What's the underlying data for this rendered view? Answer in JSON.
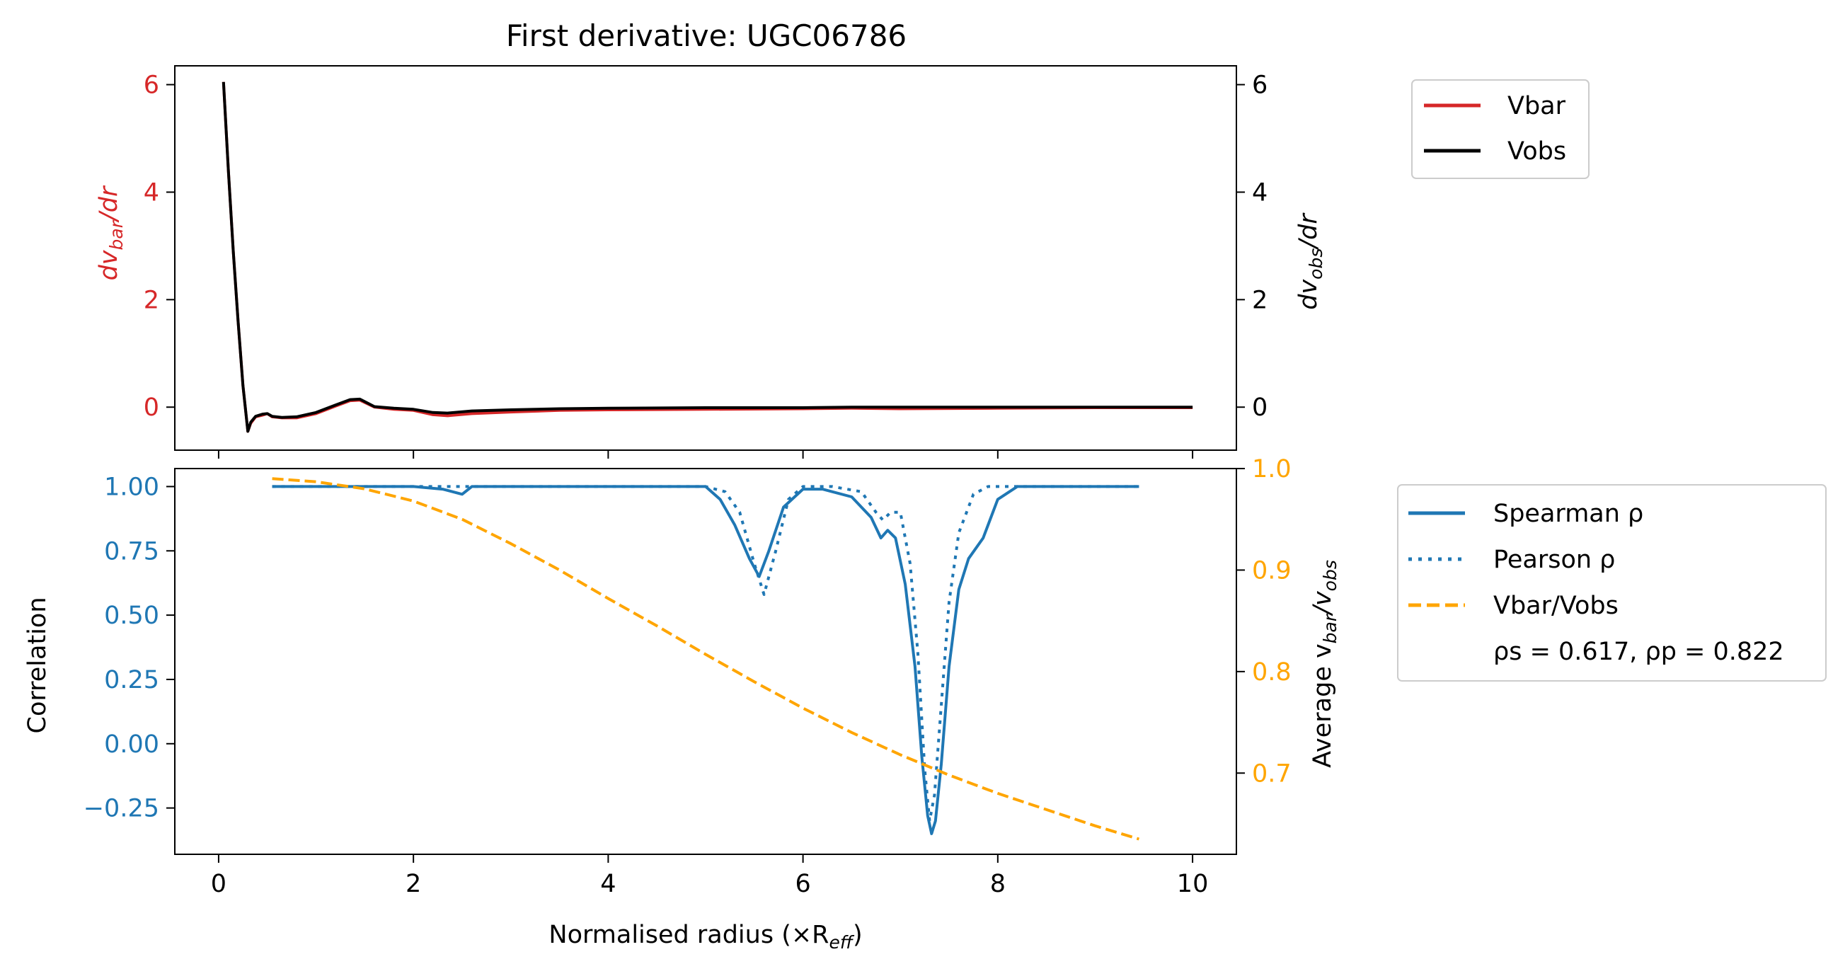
{
  "title": "First derivative: UGC06786",
  "colors": {
    "vbar": "#d62728",
    "vobs": "#000000",
    "correlation": "#1f77b4",
    "ratio": "#ffa500"
  },
  "top_panel": {
    "ylabel_left_main": "dv",
    "ylabel_left_sub": "bar",
    "ylabel_left_tail": "/dr",
    "ylabel_right_main": "dv",
    "ylabel_right_sub": "obs",
    "ylabel_right_tail": "/dr",
    "legend": {
      "vbar": "Vbar",
      "vobs": "Vobs"
    }
  },
  "bottom_panel": {
    "xlabel_main": "Normalised radius (×R",
    "xlabel_sub": "eff",
    "xlabel_tail": ")",
    "ylabel_left": "Correlation",
    "ylabel_right_main": "Average v",
    "ylabel_right_sub1": "bar",
    "ylabel_right_mid": "/v",
    "ylabel_right_sub2": "obs",
    "legend": {
      "spearman": "Spearman ρ",
      "pearson": "Pearson ρ",
      "ratio": "Vbar/Vobs",
      "stats": "ρs = 0.617, ρp = 0.822"
    }
  },
  "chart_data": [
    {
      "type": "line",
      "title": "First derivative: UGC06786",
      "xlabel": "",
      "ylabel_left": "dv_bar/dr",
      "ylabel_right": "dv_obs/dr",
      "xlim": [
        -0.45,
        10.45
      ],
      "ylim_left": [
        -0.8,
        6.35
      ],
      "ylim_right": [
        -0.8,
        6.35
      ],
      "xticks": [
        0,
        2,
        4,
        6,
        8,
        10
      ],
      "yticks_left": [
        0,
        2,
        4,
        6
      ],
      "yticks_right": [
        0,
        2,
        4,
        6
      ],
      "legend_position": "outside upper right",
      "series": [
        {
          "name": "Vbar",
          "color": "#d62728",
          "x": [
            0.05,
            0.1,
            0.15,
            0.2,
            0.25,
            0.3,
            0.33,
            0.38,
            0.45,
            0.5,
            0.55,
            0.65,
            0.8,
            1.0,
            1.2,
            1.35,
            1.45,
            1.6,
            1.8,
            2.0,
            2.2,
            2.35,
            2.6,
            3.0,
            3.5,
            4.0,
            5.0,
            6.0,
            6.5,
            7.0,
            8.0,
            9.0,
            10.0
          ],
          "y": [
            6.05,
            4.4,
            2.9,
            1.6,
            0.4,
            -0.45,
            -0.3,
            -0.18,
            -0.15,
            -0.12,
            -0.18,
            -0.2,
            -0.2,
            -0.12,
            0.02,
            0.12,
            0.13,
            0.0,
            -0.04,
            -0.06,
            -0.14,
            -0.16,
            -0.12,
            -0.09,
            -0.06,
            -0.05,
            -0.04,
            -0.03,
            -0.02,
            -0.03,
            -0.02,
            -0.01,
            -0.01
          ]
        },
        {
          "name": "Vobs",
          "color": "#000000",
          "x": [
            0.05,
            0.1,
            0.15,
            0.2,
            0.25,
            0.3,
            0.33,
            0.38,
            0.45,
            0.5,
            0.55,
            0.65,
            0.8,
            1.0,
            1.2,
            1.35,
            1.45,
            1.6,
            1.8,
            2.0,
            2.2,
            2.35,
            2.6,
            3.0,
            3.5,
            4.0,
            5.0,
            6.0,
            6.5,
            7.0,
            8.0,
            9.0,
            10.0
          ],
          "y": [
            6.05,
            4.4,
            2.9,
            1.6,
            0.4,
            -0.45,
            -0.28,
            -0.17,
            -0.13,
            -0.12,
            -0.17,
            -0.19,
            -0.18,
            -0.1,
            0.04,
            0.14,
            0.15,
            0.01,
            -0.02,
            -0.04,
            -0.1,
            -0.11,
            -0.07,
            -0.05,
            -0.03,
            -0.02,
            -0.01,
            -0.01,
            0.0,
            0.0,
            0.0,
            0.0,
            0.0
          ]
        }
      ]
    },
    {
      "type": "line",
      "title": "",
      "xlabel": "Normalised radius (×R_eff)",
      "ylabel_left": "Correlation",
      "ylabel_right": "Average v_bar/v_obs",
      "xlim": [
        -0.45,
        10.45
      ],
      "ylim_left": [
        -0.43,
        1.07
      ],
      "ylim_right": [
        0.62,
        1.0
      ],
      "xticks": [
        0,
        2,
        4,
        6,
        8,
        10
      ],
      "yticks_left": [
        1.0,
        0.75,
        0.5,
        0.25,
        0.0,
        -0.25
      ],
      "yticks_left_labels": [
        "1.00",
        "0.75",
        "0.50",
        "0.25",
        "0.00",
        "−0.25"
      ],
      "yticks_right": [
        1.0,
        0.9,
        0.8,
        0.7
      ],
      "yticks_right_labels": [
        "1.0",
        "0.9",
        "0.8",
        "0.7"
      ],
      "legend_position": "outside upper right",
      "series": [
        {
          "name": "Spearman ρ",
          "axis": "left",
          "color": "#1f77b4",
          "style": "solid",
          "x": [
            0.55,
            1.0,
            2.0,
            2.3,
            2.5,
            2.6,
            3.0,
            4.0,
            5.0,
            5.15,
            5.3,
            5.45,
            5.55,
            5.65,
            5.8,
            6.0,
            6.2,
            6.5,
            6.7,
            6.8,
            6.87,
            6.95,
            7.05,
            7.15,
            7.22,
            7.28,
            7.32,
            7.36,
            7.42,
            7.5,
            7.6,
            7.7,
            7.85,
            8.0,
            8.2,
            9.0,
            9.45
          ],
          "y": [
            1.0,
            1.0,
            1.0,
            0.99,
            0.97,
            1.0,
            1.0,
            1.0,
            1.0,
            0.95,
            0.85,
            0.72,
            0.65,
            0.75,
            0.92,
            0.99,
            0.99,
            0.96,
            0.88,
            0.8,
            0.83,
            0.8,
            0.62,
            0.3,
            -0.05,
            -0.28,
            -0.35,
            -0.3,
            -0.08,
            0.3,
            0.6,
            0.72,
            0.8,
            0.95,
            1.0,
            1.0,
            1.0
          ]
        },
        {
          "name": "Pearson ρ",
          "axis": "left",
          "color": "#1f77b4",
          "style": "dotted",
          "x": [
            0.55,
            2.0,
            3.0,
            4.0,
            5.0,
            5.2,
            5.35,
            5.5,
            5.6,
            5.72,
            5.85,
            6.0,
            6.3,
            6.6,
            6.75,
            6.82,
            6.9,
            7.0,
            7.1,
            7.18,
            7.25,
            7.3,
            7.35,
            7.42,
            7.5,
            7.6,
            7.75,
            7.9,
            8.05,
            9.45
          ],
          "y": [
            1.0,
            1.0,
            1.0,
            1.0,
            1.0,
            0.98,
            0.9,
            0.7,
            0.58,
            0.75,
            0.95,
            1.0,
            1.0,
            0.98,
            0.9,
            0.87,
            0.9,
            0.9,
            0.7,
            0.35,
            -0.1,
            -0.3,
            -0.2,
            0.15,
            0.55,
            0.82,
            0.97,
            1.0,
            1.0,
            1.0
          ]
        },
        {
          "name": "Vbar/Vobs",
          "axis": "right",
          "color": "#ffa500",
          "style": "dashed",
          "x": [
            0.55,
            1.0,
            1.5,
            2.0,
            2.5,
            3.0,
            3.5,
            4.0,
            4.5,
            5.0,
            5.5,
            6.0,
            6.5,
            7.0,
            7.5,
            8.0,
            8.5,
            9.0,
            9.45
          ],
          "y": [
            0.99,
            0.987,
            0.98,
            0.968,
            0.95,
            0.926,
            0.9,
            0.872,
            0.845,
            0.817,
            0.79,
            0.764,
            0.74,
            0.718,
            0.698,
            0.68,
            0.664,
            0.648,
            0.635
          ]
        }
      ],
      "annotations": [
        "ρs = 0.617, ρp = 0.822"
      ]
    }
  ]
}
